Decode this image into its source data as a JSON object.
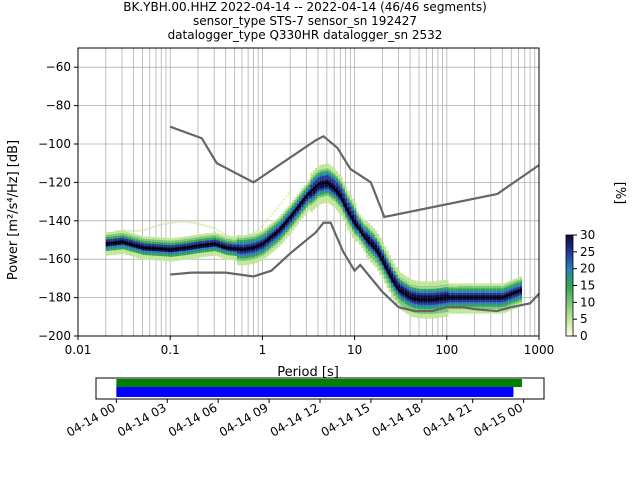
{
  "title_lines": [
    "BK.YBH.00.HHZ   2022-04-14 -- 2022-04-14  (46/46 segments)",
    "sensor_type STS-7 sensor_sn 192427",
    "datalogger_type Q330HR datalogger_sn 2532"
  ],
  "chart_data": {
    "type": "heatmap",
    "xlabel": "Period [s]",
    "ylabel": "Power [m²/s⁴/Hz] [dB]",
    "xscale": "log",
    "xlim": [
      0.01,
      1000
    ],
    "ylim": [
      -200,
      -50
    ],
    "x_ticks": [
      0.01,
      0.1,
      1,
      10,
      100,
      1000
    ],
    "x_tick_labels": [
      "0.01",
      "0.1",
      "1",
      "10",
      "100",
      "1000"
    ],
    "y_ticks": [
      -200,
      -180,
      -160,
      -140,
      -120,
      -100,
      -80,
      -60
    ],
    "y_tick_labels": [
      "−200",
      "−180",
      "−160",
      "−140",
      "−120",
      "−100",
      "−80",
      "−60"
    ],
    "grid": true,
    "noise_model_high": [
      [
        0.1,
        -91
      ],
      [
        0.22,
        -97
      ],
      [
        0.32,
        -110
      ],
      [
        0.8,
        -120
      ],
      [
        3.8,
        -98
      ],
      [
        4.6,
        -96
      ],
      [
        6.5,
        -102
      ],
      [
        9,
        -113
      ],
      [
        15,
        -120
      ],
      [
        21,
        -138
      ],
      [
        354,
        -126
      ],
      [
        1000,
        -111
      ]
    ],
    "noise_model_low": [
      [
        0.1,
        -168
      ],
      [
        0.17,
        -167
      ],
      [
        0.4,
        -167
      ],
      [
        0.8,
        -169
      ],
      [
        1.25,
        -166
      ],
      [
        2,
        -157
      ],
      [
        3.8,
        -146
      ],
      [
        4.6,
        -141
      ],
      [
        5.5,
        -141
      ],
      [
        7.5,
        -156
      ],
      [
        10,
        -166
      ],
      [
        11.5,
        -163
      ],
      [
        20,
        -177
      ],
      [
        30,
        -185
      ],
      [
        45,
        -187
      ],
      [
        70,
        -187
      ],
      [
        100,
        -185
      ],
      [
        150,
        -185
      ],
      [
        200,
        -186
      ],
      [
        350,
        -187
      ],
      [
        500,
        -185
      ],
      [
        800,
        -183
      ],
      [
        1000,
        -178
      ]
    ],
    "mode_curve": [
      [
        0.02,
        -152
      ],
      [
        0.03,
        -151
      ],
      [
        0.05,
        -154
      ],
      [
        0.1,
        -155
      ],
      [
        0.15,
        -154
      ],
      [
        0.2,
        -153
      ],
      [
        0.3,
        -152
      ],
      [
        0.4,
        -154
      ],
      [
        0.6,
        -155
      ],
      [
        0.8,
        -154
      ],
      [
        1,
        -152
      ],
      [
        1.5,
        -145
      ],
      [
        2,
        -138
      ],
      [
        3,
        -127
      ],
      [
        4,
        -121
      ],
      [
        5,
        -120
      ],
      [
        6,
        -123
      ],
      [
        7,
        -127
      ],
      [
        8,
        -133
      ],
      [
        10,
        -141
      ],
      [
        13,
        -149
      ],
      [
        17,
        -155
      ],
      [
        20,
        -161
      ],
      [
        25,
        -170
      ],
      [
        30,
        -176
      ],
      [
        40,
        -180
      ],
      [
        50,
        -181
      ],
      [
        70,
        -181
      ],
      [
        100,
        -180
      ],
      [
        200,
        -180
      ],
      [
        400,
        -180
      ],
      [
        500,
        -178
      ],
      [
        650,
        -176
      ]
    ],
    "colorbar": {
      "label": "[%]",
      "min": 0,
      "max": 30,
      "ticks": [
        0,
        5,
        10,
        15,
        20,
        25,
        30
      ],
      "tick_labels": [
        "0",
        "5",
        "10",
        "15",
        "20",
        "25",
        "30"
      ],
      "colors": [
        "#ffffe5",
        "#c2e699",
        "#78c679",
        "#31a354",
        "#2c7fb8",
        "#253494",
        "#0b0b40"
      ]
    },
    "timeline": {
      "tick_labels": [
        "04-14 00",
        "04-14 03",
        "04-14 06",
        "04-14 09",
        "04-14 12",
        "04-14 15",
        "04-14 18",
        "04-14 21",
        "04-15 00"
      ],
      "tick_hours": [
        0,
        3,
        6,
        9,
        12,
        15,
        18,
        21,
        24
      ],
      "range_hours": [
        -1.2,
        25.2
      ],
      "data_bar_hours": [
        0,
        23.9
      ],
      "processed_bar_hours": [
        0,
        23.4
      ],
      "data_color": "#008000",
      "processed_color": "#0000ff"
    }
  }
}
